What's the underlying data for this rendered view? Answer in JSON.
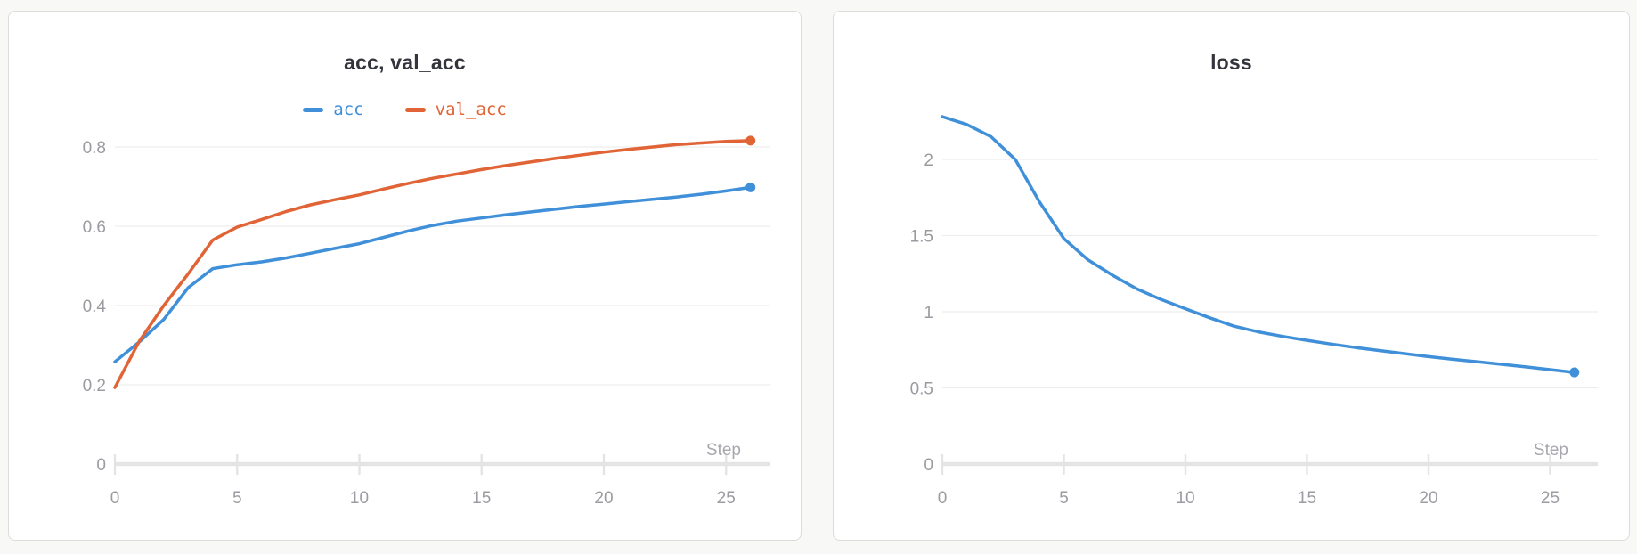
{
  "style": {
    "page_background": "#f8f8f6",
    "panel_background": "#ffffff",
    "panel_border": "#dcdcdc",
    "title_color": "#33343c",
    "grid_color": "#ededee",
    "axis_color": "#e4e4e4",
    "tick_label_color": "#9b9ba1",
    "step_label_color": "#a7a7ad",
    "series_blue": "#4090d9",
    "series_orange": "#e06436"
  },
  "chart_data": [
    {
      "type": "line",
      "title": "acc, val_acc",
      "xlabel": "Step",
      "ylabel": "",
      "legend_position": "top-center",
      "grid": true,
      "x_ticks": [
        0,
        5,
        10,
        15,
        20,
        25
      ],
      "y_ticks": [
        0,
        0.2,
        0.4,
        0.6,
        0.8
      ],
      "xlim": [
        0,
        26.8
      ],
      "ylim": [
        0,
        0.85
      ],
      "x": [
        0,
        1,
        2,
        3,
        4,
        5,
        6,
        7,
        8,
        9,
        10,
        11,
        12,
        13,
        14,
        15,
        16,
        17,
        18,
        19,
        20,
        21,
        22,
        23,
        24,
        25,
        26
      ],
      "series": [
        {
          "name": "acc",
          "color": "#4090d9",
          "values": [
            0.258,
            0.308,
            0.365,
            0.445,
            0.493,
            0.503,
            0.51,
            0.52,
            0.532,
            0.544,
            0.556,
            0.572,
            0.588,
            0.602,
            0.613,
            0.621,
            0.629,
            0.636,
            0.643,
            0.65,
            0.656,
            0.662,
            0.668,
            0.674,
            0.681,
            0.689,
            0.698
          ]
        },
        {
          "name": "val_acc",
          "color": "#e06436",
          "values": [
            0.193,
            0.31,
            0.4,
            0.48,
            0.565,
            0.598,
            0.617,
            0.637,
            0.654,
            0.667,
            0.679,
            0.694,
            0.708,
            0.721,
            0.732,
            0.743,
            0.753,
            0.762,
            0.771,
            0.779,
            0.787,
            0.794,
            0.8,
            0.806,
            0.81,
            0.814,
            0.816
          ]
        }
      ]
    },
    {
      "type": "line",
      "title": "loss",
      "xlabel": "Step",
      "ylabel": "",
      "legend_position": "none",
      "grid": true,
      "x_ticks": [
        0,
        5,
        10,
        15,
        20,
        25
      ],
      "y_ticks": [
        0,
        0.5,
        1,
        1.5,
        2
      ],
      "xlim": [
        0,
        26.8
      ],
      "ylim": [
        0,
        2.4
      ],
      "x": [
        0,
        1,
        2,
        3,
        4,
        5,
        6,
        7,
        8,
        9,
        10,
        11,
        12,
        13,
        14,
        15,
        16,
        17,
        18,
        19,
        20,
        21,
        22,
        23,
        24,
        25,
        26
      ],
      "series": [
        {
          "name": "loss",
          "color": "#4090d9",
          "values": [
            2.28,
            2.23,
            2.15,
            2.0,
            1.72,
            1.48,
            1.34,
            1.24,
            1.15,
            1.08,
            1.02,
            0.96,
            0.905,
            0.868,
            0.838,
            0.812,
            0.788,
            0.765,
            0.745,
            0.725,
            0.705,
            0.688,
            0.672,
            0.655,
            0.638,
            0.62,
            0.602
          ]
        }
      ]
    }
  ]
}
